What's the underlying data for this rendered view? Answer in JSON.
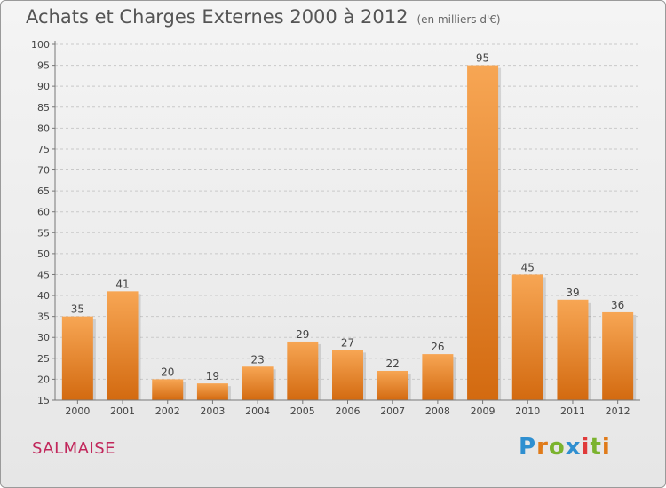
{
  "header": {
    "title": "Achats et Charges Externes 2000 à 2012",
    "subtitle": "(en milliers d'€)"
  },
  "footer": {
    "place": "SALMAISE",
    "logo_text": "Proxiti"
  },
  "colors": {
    "bar_light": "#f7a654",
    "bar_dark": "#d36a10",
    "title": "#555555",
    "place": "#c1275b",
    "logo_letters": [
      "#2f8fd0",
      "#e07b1a",
      "#7bb32e",
      "#2f8fd0",
      "#e03a3a",
      "#7bb32e",
      "#e07b1a"
    ]
  },
  "chart_data": {
    "type": "bar",
    "title": "Achats et Charges Externes 2000 à 2012",
    "subtitle": "(en milliers d'€)",
    "categories": [
      "2000",
      "2001",
      "2002",
      "2003",
      "2004",
      "2005",
      "2006",
      "2007",
      "2008",
      "2009",
      "2010",
      "2011",
      "2012"
    ],
    "values": [
      35,
      41,
      20,
      19,
      23,
      29,
      27,
      22,
      26,
      95,
      45,
      39,
      36
    ],
    "ylim": [
      15,
      100
    ],
    "yticks": [
      15,
      20,
      25,
      30,
      35,
      40,
      45,
      50,
      55,
      60,
      65,
      70,
      75,
      80,
      85,
      90,
      95,
      100
    ],
    "grid": true,
    "xlabel": "",
    "ylabel": ""
  }
}
